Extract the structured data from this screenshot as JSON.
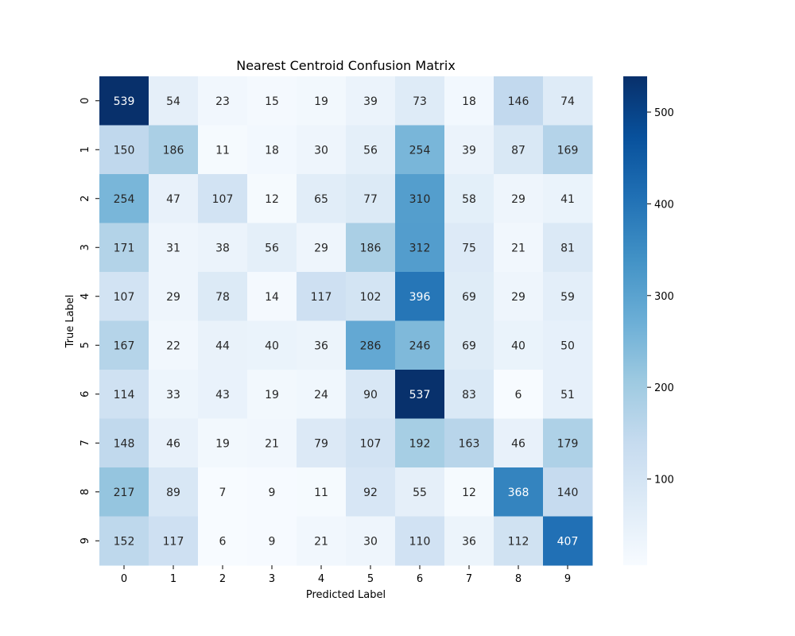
{
  "chart_data": {
    "type": "heatmap",
    "title": "Nearest Centroid Confusion Matrix",
    "xlabel": "Predicted Label",
    "ylabel": "True Label",
    "x_categories": [
      "0",
      "1",
      "2",
      "3",
      "4",
      "5",
      "6",
      "7",
      "8",
      "9"
    ],
    "y_categories": [
      "0",
      "1",
      "2",
      "3",
      "4",
      "5",
      "6",
      "7",
      "8",
      "9"
    ],
    "values": [
      [
        539,
        54,
        23,
        15,
        19,
        39,
        73,
        18,
        146,
        74
      ],
      [
        150,
        186,
        11,
        18,
        30,
        56,
        254,
        39,
        87,
        169
      ],
      [
        254,
        47,
        107,
        12,
        65,
        77,
        310,
        58,
        29,
        41
      ],
      [
        171,
        31,
        38,
        56,
        29,
        186,
        312,
        75,
        21,
        81
      ],
      [
        107,
        29,
        78,
        14,
        117,
        102,
        396,
        69,
        29,
        59
      ],
      [
        167,
        22,
        44,
        40,
        36,
        286,
        246,
        69,
        40,
        50
      ],
      [
        114,
        33,
        43,
        19,
        24,
        90,
        537,
        83,
        6,
        51
      ],
      [
        148,
        46,
        19,
        21,
        79,
        107,
        192,
        163,
        46,
        179
      ],
      [
        217,
        89,
        7,
        9,
        11,
        92,
        55,
        12,
        368,
        140
      ],
      [
        152,
        117,
        6,
        9,
        21,
        30,
        110,
        36,
        112,
        407
      ]
    ],
    "colormap": "Blues",
    "vmin": 6,
    "vmax": 539,
    "colorbar_ticks": [
      100,
      200,
      300,
      400,
      500
    ],
    "colorbar_tick_labels": [
      "100",
      "200",
      "300",
      "400",
      "500"
    ],
    "grid": false,
    "legend": "colorbar-right"
  }
}
